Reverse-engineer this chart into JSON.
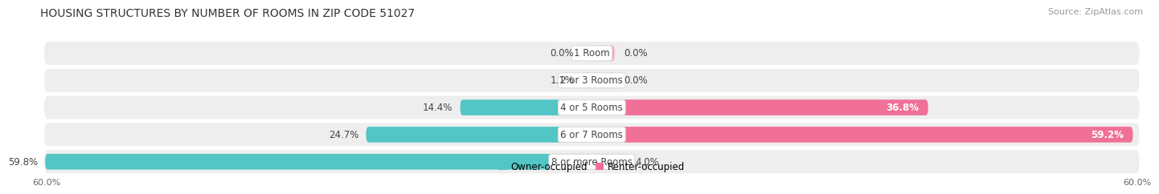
{
  "title": "HOUSING STRUCTURES BY NUMBER OF ROOMS IN ZIP CODE 51027",
  "source": "Source: ZipAtlas.com",
  "categories": [
    "1 Room",
    "2 or 3 Rooms",
    "4 or 5 Rooms",
    "6 or 7 Rooms",
    "8 or more Rooms"
  ],
  "owner_values": [
    0.0,
    1.1,
    14.4,
    24.7,
    59.8
  ],
  "renter_values": [
    0.0,
    0.0,
    36.8,
    59.2,
    4.0
  ],
  "owner_color": "#52C5C5",
  "renter_color": "#F07098",
  "renter_color_small": "#F7A8C0",
  "row_bg_color": "#EEEEEE",
  "max_value": 60.0,
  "axis_label_left": "60.0%",
  "axis_label_right": "60.0%",
  "title_fontsize": 10,
  "source_fontsize": 8,
  "bar_label_fontsize": 8.5,
  "category_fontsize": 8.5,
  "axis_fontsize": 8,
  "legend_fontsize": 8.5,
  "owner_legend_color": "#52C5C5",
  "renter_legend_color": "#F07098"
}
